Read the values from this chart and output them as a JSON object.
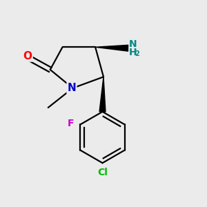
{
  "bg_color": "#ebebeb",
  "atom_colors": {
    "O": "#ff0000",
    "N": "#0000cc",
    "C": "#000000",
    "Cl": "#00bb00",
    "F": "#cc00cc",
    "NH2": "#008888"
  },
  "bond_color": "#000000",
  "bond_lw": 1.6,
  "figsize": [
    3.0,
    3.0
  ],
  "dpi": 100,
  "xlim": [
    0.0,
    1.0
  ],
  "ylim": [
    0.0,
    1.0
  ]
}
